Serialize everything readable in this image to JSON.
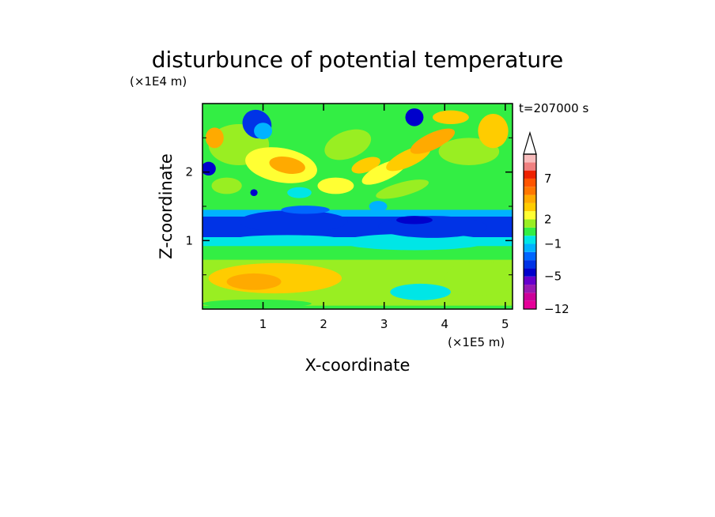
{
  "chart_data": {
    "type": "heatmap",
    "title": "disturbunce of potential temperature",
    "time_label": "t=207000 s",
    "xlabel": "X-coordinate",
    "ylabel": "Z-coordinate",
    "x_unit": "(×1E5 m)",
    "y_unit": "(×1E4 m)",
    "xlim": [
      0,
      5.12
    ],
    "ylim": [
      0,
      3.0
    ],
    "x_ticks": [
      "1",
      "2",
      "3",
      "4",
      "5"
    ],
    "x_tick_values": [
      1,
      2,
      3,
      4,
      5
    ],
    "y_ticks": [
      "1",
      "2"
    ],
    "y_tick_values": [
      1,
      2
    ],
    "grid": false,
    "colorbar": {
      "tick_labels": [
        {
          "label": "7",
          "value": 7
        },
        {
          "label": "2",
          "value": 2
        },
        {
          "label": "−1",
          "value": -1
        },
        {
          "label": "−5",
          "value": -5
        },
        {
          "label": "−12",
          "value": -12
        }
      ],
      "levels": [
        {
          "value": -12,
          "color": "#e60099"
        },
        {
          "value": -9,
          "color": "#cc0099"
        },
        {
          "value": -7,
          "color": "#9919b3"
        },
        {
          "value": -6,
          "color": "#6600cc"
        },
        {
          "value": -5,
          "color": "#0000cc"
        },
        {
          "value": -4,
          "color": "#0033e6"
        },
        {
          "value": -3,
          "color": "#0066ff"
        },
        {
          "value": -2,
          "color": "#00b3ff"
        },
        {
          "value": -1,
          "color": "#00e6e6"
        },
        {
          "value": 0,
          "color": "#33ee44"
        },
        {
          "value": 1,
          "color": "#99ee22"
        },
        {
          "value": 2,
          "color": "#ffff33"
        },
        {
          "value": 3,
          "color": "#ffcc00"
        },
        {
          "value": 4,
          "color": "#ffaa00"
        },
        {
          "value": 5,
          "color": "#ff7700"
        },
        {
          "value": 6,
          "color": "#ff5500"
        },
        {
          "value": 7,
          "color": "#ee2200"
        },
        {
          "value": 8,
          "color": "#f08080"
        },
        {
          "value": 9,
          "color": "#f8bcbc"
        }
      ],
      "extend": "max"
    }
  }
}
